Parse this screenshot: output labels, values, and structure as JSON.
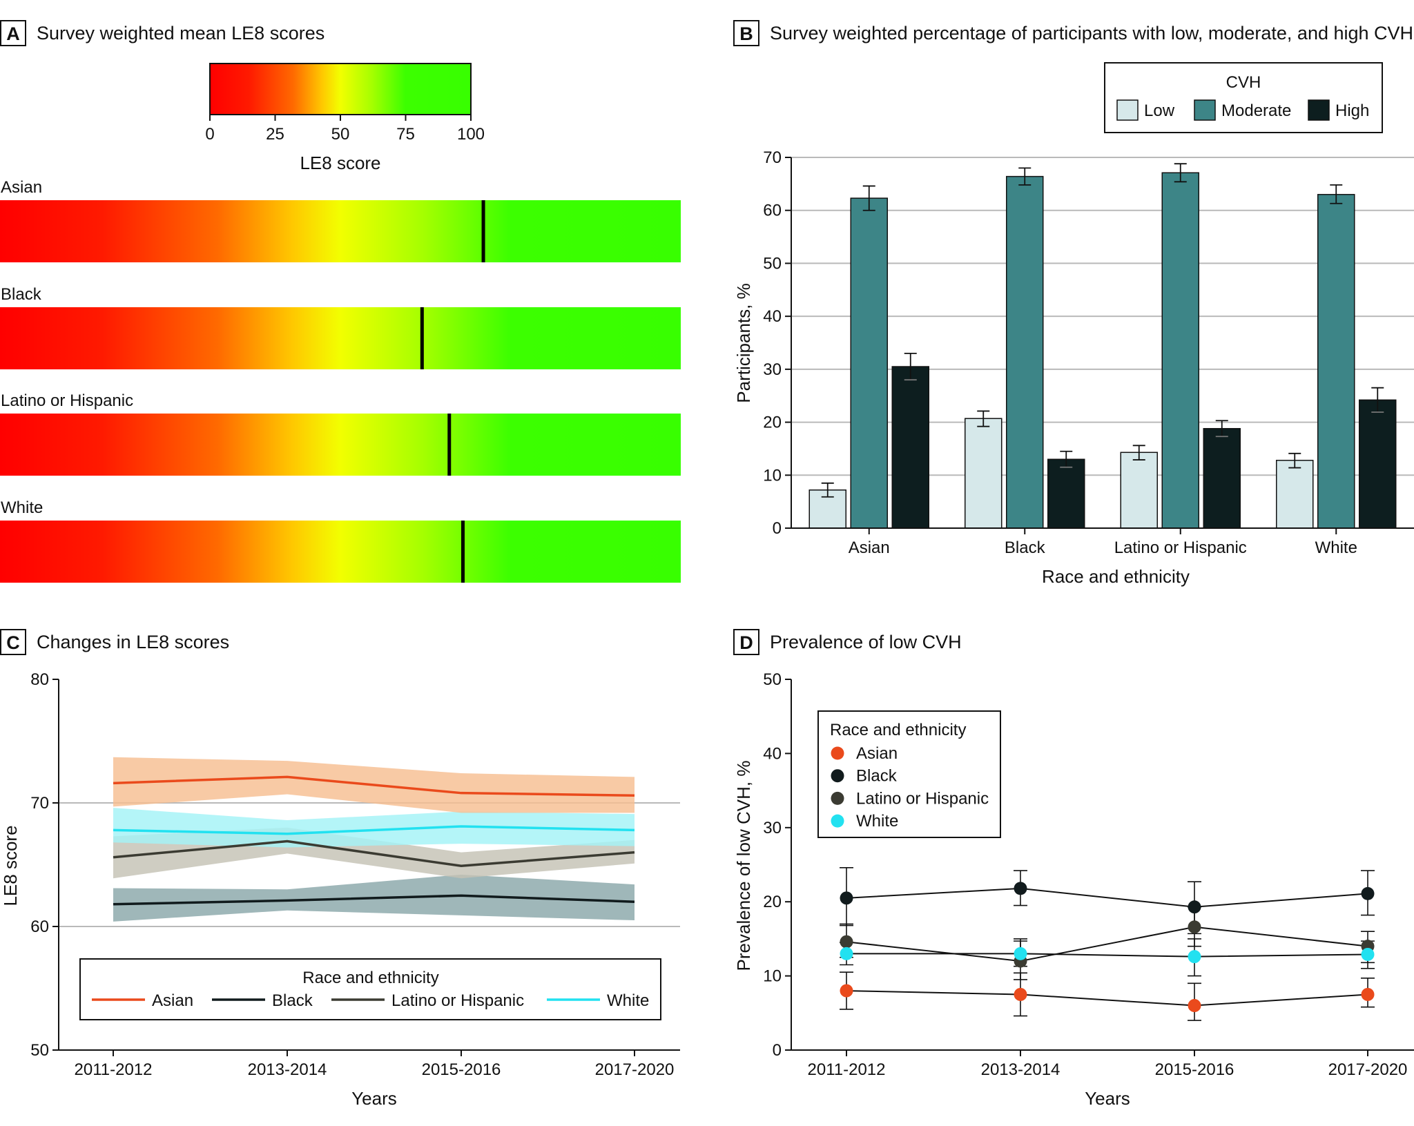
{
  "colors": {
    "asian": "#ea4a1c",
    "black": "#111b1d",
    "latino": "#3b3b32",
    "white": "#22e1f0",
    "asian_band": "#f7be91",
    "black_band": "#8aa7a9",
    "latino_band": "#c4c2b5",
    "white_band": "#a3f3f6",
    "low_bar": "#d6e8ea",
    "moderate_bar": "#3d8587",
    "high_bar": "#0d1e1f"
  },
  "panels": [
    {
      "letter": "A",
      "title": "Survey weighted mean LE8 scores"
    },
    {
      "letter": "B",
      "title": "Survey weighted percentage of participants with low, moderate, and high CVH"
    },
    {
      "letter": "C",
      "title": "Changes in LE8 scores"
    },
    {
      "letter": "D",
      "title": "Prevalence of low CVH"
    }
  ],
  "chart_data": [
    {
      "panel": "A",
      "type": "heatmap",
      "title": "Survey weighted mean LE8 scores",
      "colorbar": {
        "label": "LE8 score",
        "ticks": [
          "0",
          "25",
          "50",
          "75",
          "100"
        ],
        "range": [
          0,
          100
        ],
        "colors": [
          "red",
          "yellow",
          "green"
        ]
      },
      "rows": [
        {
          "label": "Asian",
          "value": 71
        },
        {
          "label": "Black",
          "value": 62
        },
        {
          "label": "Latino or Hispanic",
          "value": 66
        },
        {
          "label": "White",
          "value": 68
        }
      ],
      "scale_range": [
        0,
        100
      ]
    },
    {
      "panel": "B",
      "type": "bar",
      "title": "Survey weighted percentage of participants with low, moderate, and high CVH",
      "xlabel": "Race and ethnicity",
      "ylabel": "Participants, %",
      "ylim": [
        0,
        70
      ],
      "yticks": [
        "0",
        "10",
        "20",
        "30",
        "40",
        "50",
        "60",
        "70"
      ],
      "categories": [
        "Asian",
        "Black",
        "Latino or Hispanic",
        "White"
      ],
      "legend_title": "CVH",
      "legend_position": "top-right",
      "series": [
        {
          "name": "Low",
          "values": [
            7.2,
            20.7,
            14.3,
            12.8
          ],
          "ci_low": [
            5.9,
            19.2,
            12.9,
            11.4
          ],
          "ci_high": [
            8.5,
            22.1,
            15.6,
            14.1
          ]
        },
        {
          "name": "Moderate",
          "values": [
            62.3,
            66.4,
            67.1,
            63.0
          ],
          "ci_low": [
            60.0,
            64.8,
            65.4,
            61.3
          ],
          "ci_high": [
            64.6,
            68.0,
            68.8,
            64.8
          ]
        },
        {
          "name": "High",
          "values": [
            30.5,
            13.0,
            18.8,
            24.2
          ],
          "ci_low": [
            28.0,
            11.5,
            17.3,
            21.9
          ],
          "ci_high": [
            33.0,
            14.5,
            20.3,
            26.5
          ]
        }
      ]
    },
    {
      "panel": "C",
      "type": "line",
      "title": "Changes in LE8 scores",
      "xlabel": "Years",
      "ylabel": "LE8 score",
      "ylim": [
        50,
        80
      ],
      "yticks": [
        "50",
        "60",
        "70",
        "80"
      ],
      "x": [
        "2011-2012",
        "2013-2014",
        "2015-2016",
        "2017-2020"
      ],
      "legend_title": "Race and ethnicity",
      "legend_position": "bottom",
      "series": [
        {
          "name": "Asian",
          "values": [
            71.6,
            72.1,
            70.8,
            70.6
          ],
          "lower": [
            69.7,
            70.7,
            69.2,
            69.2
          ],
          "upper": [
            73.7,
            73.4,
            72.4,
            72.1
          ]
        },
        {
          "name": "Black",
          "values": [
            61.8,
            62.1,
            62.5,
            62.0
          ],
          "lower": [
            60.4,
            61.3,
            60.9,
            60.5
          ],
          "upper": [
            63.1,
            63.0,
            64.2,
            63.4
          ]
        },
        {
          "name": "Latino or Hispanic",
          "values": [
            65.6,
            66.9,
            64.9,
            66.0
          ],
          "lower": [
            63.9,
            65.9,
            63.9,
            65.1
          ],
          "upper": [
            67.3,
            68.0,
            66.0,
            67.0
          ]
        },
        {
          "name": "White",
          "values": [
            67.8,
            67.5,
            68.1,
            67.8
          ],
          "lower": [
            66.8,
            66.4,
            66.7,
            66.5
          ],
          "upper": [
            69.6,
            68.6,
            69.3,
            69.1
          ]
        }
      ]
    },
    {
      "panel": "D",
      "type": "scatter",
      "title": "Prevalence of low CVH",
      "xlabel": "Years",
      "ylabel": "Prevalence of low CVH, %",
      "ylim": [
        0,
        50
      ],
      "yticks": [
        "0",
        "10",
        "20",
        "30",
        "40",
        "50"
      ],
      "x": [
        "2011-2012",
        "2013-2014",
        "2015-2016",
        "2017-2020"
      ],
      "legend_title": "Race and ethnicity",
      "legend_position": "top-left",
      "series": [
        {
          "name": "Asian",
          "values": [
            8.0,
            7.5,
            6.0,
            7.5
          ],
          "ci_low": [
            5.5,
            4.6,
            4.0,
            5.8
          ],
          "ci_high": [
            10.5,
            10.4,
            9.0,
            9.7
          ]
        },
        {
          "name": "Black",
          "values": [
            20.5,
            21.8,
            19.3,
            21.1
          ],
          "ci_low": [
            16.8,
            19.5,
            15.7,
            18.2
          ],
          "ci_high": [
            24.6,
            24.2,
            22.7,
            24.2
          ]
        },
        {
          "name": "Latino or Hispanic",
          "values": [
            14.6,
            12.0,
            16.6,
            14.0
          ],
          "ci_low": [
            12.5,
            9.5,
            14.0,
            11.8
          ],
          "ci_high": [
            17.0,
            15.0,
            19.3,
            16.0
          ]
        },
        {
          "name": "White",
          "values": [
            13.0,
            13.0,
            12.6,
            12.9
          ],
          "ci_low": [
            11.5,
            11.3,
            10.0,
            11.0
          ],
          "ci_high": [
            14.5,
            14.7,
            15.0,
            14.7
          ]
        }
      ]
    }
  ]
}
